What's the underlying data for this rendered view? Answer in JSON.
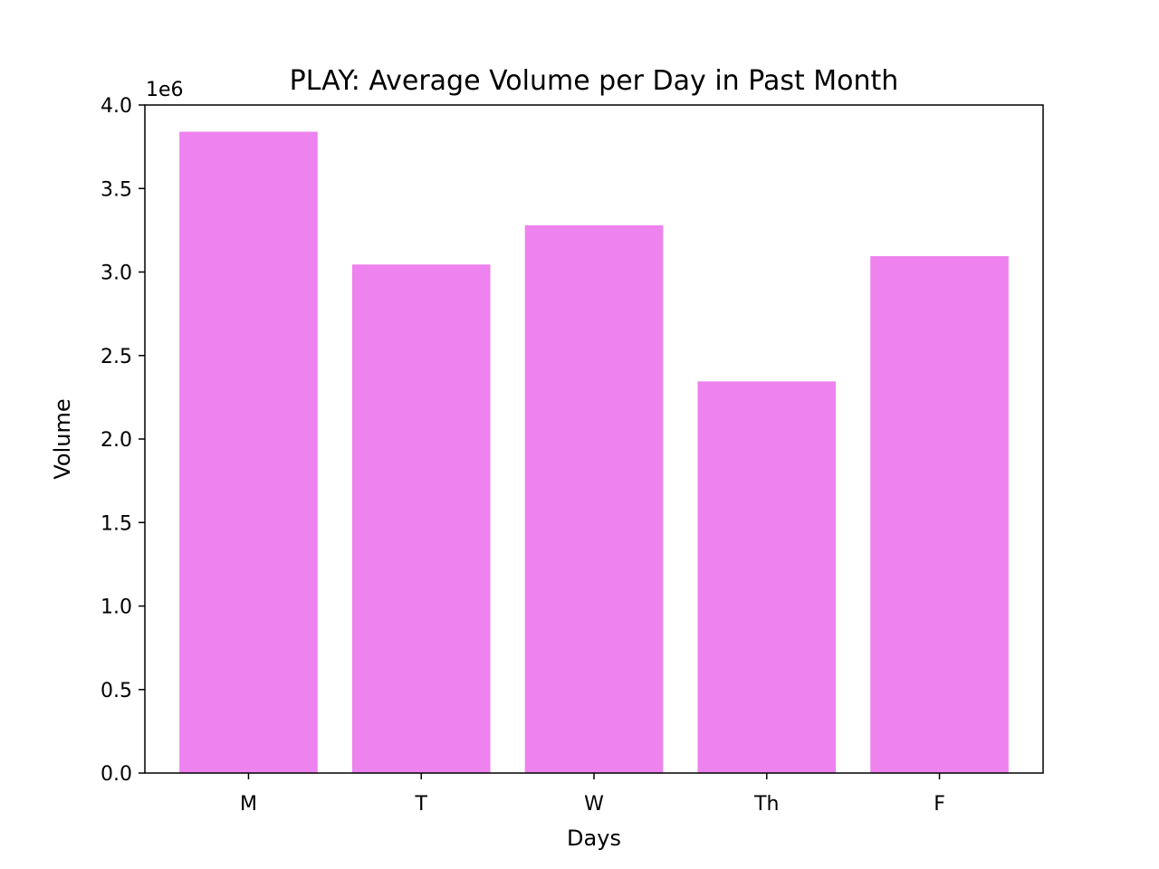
{
  "chart_data": {
    "type": "bar",
    "title": "PLAY: Average Volume per Day in Past Month",
    "xlabel": "Days",
    "ylabel": "Volume",
    "categories": [
      "M",
      "T",
      "W",
      "Th",
      "F"
    ],
    "values": [
      3840000,
      3045000,
      3280000,
      2345000,
      3095000
    ],
    "ylim": [
      0,
      4000000
    ],
    "yticks": [
      "0.0",
      "0.5",
      "1.0",
      "1.5",
      "2.0",
      "2.5",
      "3.0",
      "3.5",
      "4.0"
    ],
    "y_offset_label": "1e6",
    "bar_color": "#ee82ee",
    "grid": false,
    "legend": "none"
  }
}
